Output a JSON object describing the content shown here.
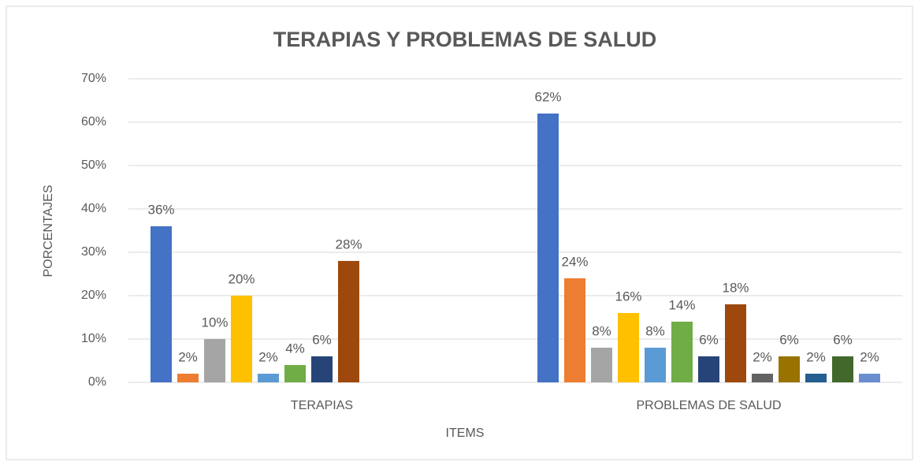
{
  "chart_data": {
    "type": "bar",
    "title": "TERAPIAS Y PROBLEMAS DE SALUD",
    "x_label": "ITEMS",
    "y_label": "PORCENTAJES",
    "categories": [
      "TERAPIAS",
      "PROBLEMAS DE SALUD"
    ],
    "series": [
      {
        "color": "#4472c4",
        "values": [
          36,
          62
        ],
        "value_labels": [
          "36%",
          "62%"
        ]
      },
      {
        "color": "#ed7d31",
        "values": [
          2,
          24
        ],
        "value_labels": [
          "2%",
          "24%"
        ]
      },
      {
        "color": "#a5a5a5",
        "values": [
          10,
          8
        ],
        "value_labels": [
          "10%",
          "8%"
        ]
      },
      {
        "color": "#ffc000",
        "values": [
          20,
          16
        ],
        "value_labels": [
          "20%",
          "16%"
        ]
      },
      {
        "color": "#5b9bd5",
        "values": [
          2,
          8
        ],
        "value_labels": [
          "2%",
          "8%"
        ]
      },
      {
        "color": "#70ad47",
        "values": [
          4,
          14
        ],
        "value_labels": [
          "4%",
          "14%"
        ]
      },
      {
        "color": "#264478",
        "values": [
          6,
          6
        ],
        "value_labels": [
          "6%",
          "6%"
        ]
      },
      {
        "color": "#9e480e",
        "values": [
          28,
          18
        ],
        "value_labels": [
          "28%",
          "18%"
        ]
      },
      {
        "color": "#636363",
        "values": [
          null,
          2
        ],
        "value_labels": [
          null,
          "2%"
        ]
      },
      {
        "color": "#997300",
        "values": [
          null,
          6
        ],
        "value_labels": [
          null,
          "6%"
        ]
      },
      {
        "color": "#255e91",
        "values": [
          null,
          2
        ],
        "value_labels": [
          null,
          "2%"
        ]
      },
      {
        "color": "#43682b",
        "values": [
          null,
          6
        ],
        "value_labels": [
          null,
          "6%"
        ]
      },
      {
        "color": "#698ed0",
        "values": [
          null,
          2
        ],
        "value_labels": [
          null,
          "2%"
        ]
      }
    ],
    "ylim": [
      0,
      70
    ],
    "yticks": [
      {
        "value": 0,
        "label": "0%"
      },
      {
        "value": 10,
        "label": "10%"
      },
      {
        "value": 20,
        "label": "20%"
      },
      {
        "value": 30,
        "label": "30%"
      },
      {
        "value": 40,
        "label": "40%"
      },
      {
        "value": 50,
        "label": "50%"
      },
      {
        "value": 60,
        "label": "60%"
      },
      {
        "value": 70,
        "label": "70%"
      }
    ],
    "grid": true
  }
}
